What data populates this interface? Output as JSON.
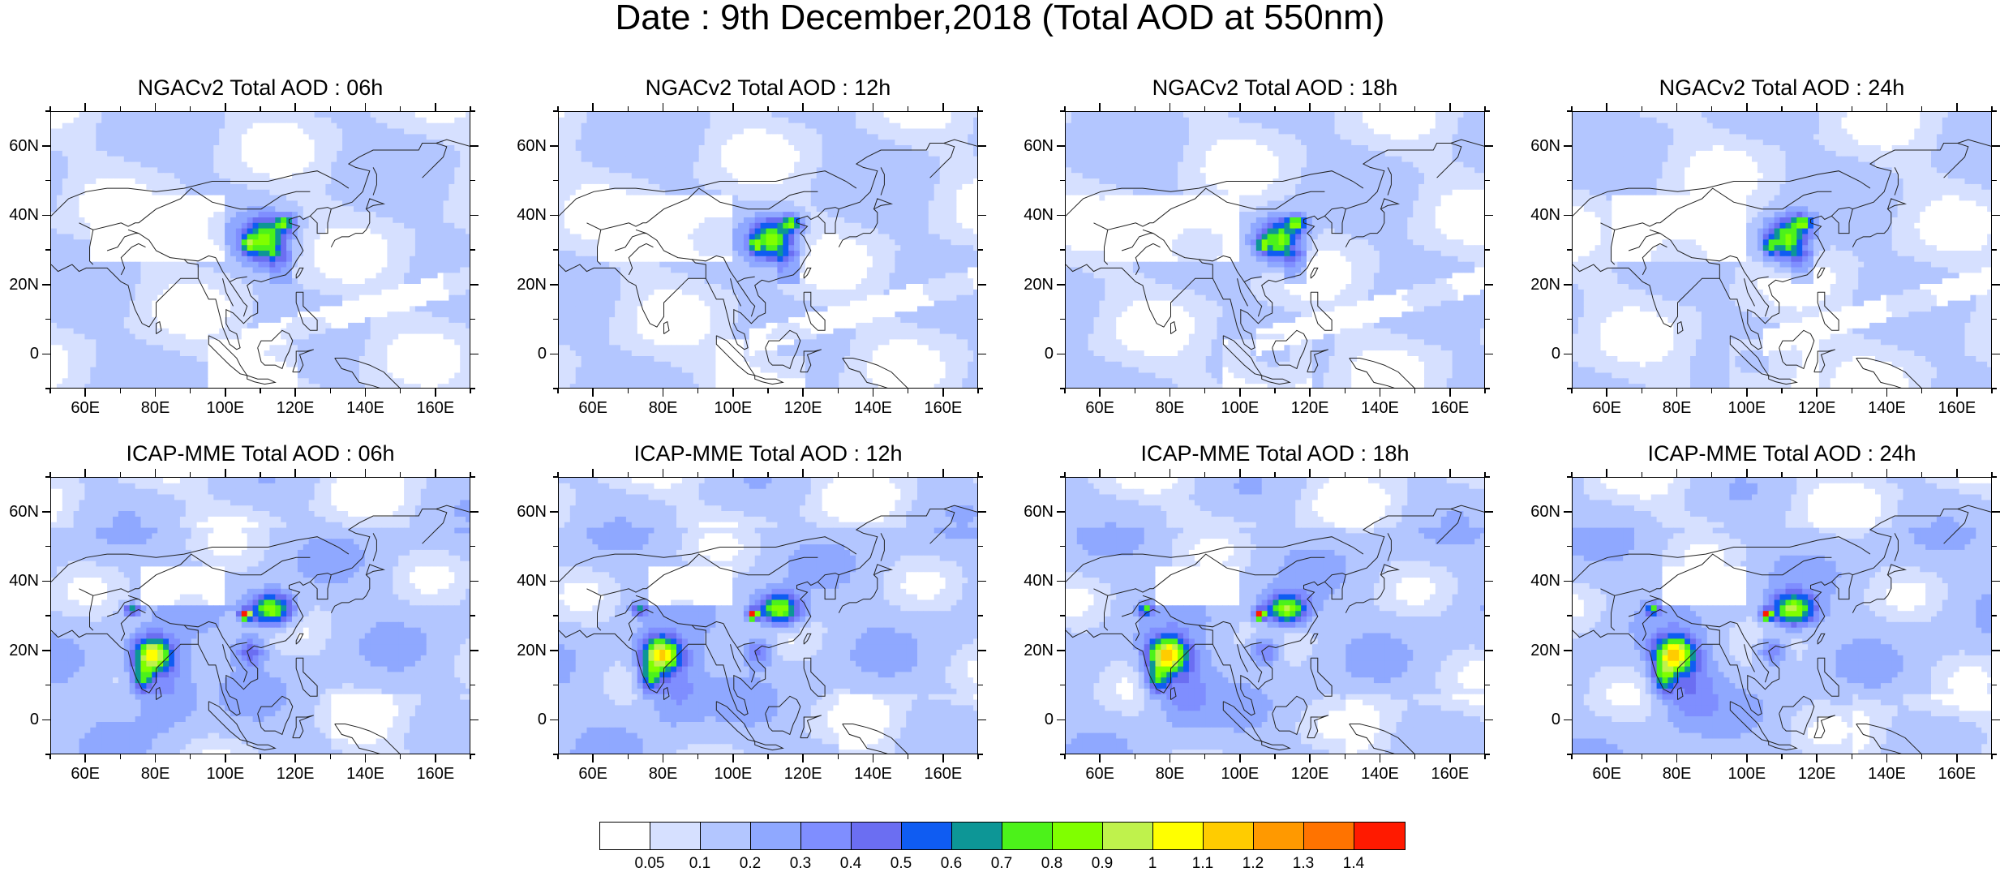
{
  "title": "Date : 9th December,2018 (Total AOD at 550nm)",
  "panels": [
    {
      "title": "NGACv2 Total AOD : 06h",
      "model": "ngac"
    },
    {
      "title": "NGACv2 Total AOD : 12h",
      "model": "ngac"
    },
    {
      "title": "NGACv2 Total AOD : 18h",
      "model": "ngac"
    },
    {
      "title": "NGACv2 Total AOD : 24h",
      "model": "ngac"
    },
    {
      "title": "ICAP-MME Total AOD : 06h",
      "model": "icap"
    },
    {
      "title": "ICAP-MME Total AOD : 12h",
      "model": "icap"
    },
    {
      "title": "ICAP-MME Total AOD : 18h",
      "model": "icap"
    },
    {
      "title": "ICAP-MME Total AOD : 24h",
      "model": "icap"
    }
  ],
  "axes": {
    "x_labels": [
      "60E",
      "80E",
      "100E",
      "120E",
      "140E",
      "160E"
    ],
    "y_labels": [
      "60N",
      "40N",
      "20N",
      "0"
    ]
  },
  "colorbar": {
    "labels": [
      "0.05",
      "0.1",
      "0.2",
      "0.3",
      "0.4",
      "0.5",
      "0.6",
      "0.7",
      "0.8",
      "0.9",
      "1",
      "1.1",
      "1.2",
      "1.3",
      "1.4"
    ],
    "colors": [
      "#ffffff",
      "#d6e0ff",
      "#b3c6ff",
      "#8fa8ff",
      "#7f8eff",
      "#6b6ef2",
      "#0f5cf2",
      "#0d9696",
      "#4cf21a",
      "#80ff00",
      "#bff24c",
      "#ffff00",
      "#ffcc00",
      "#ff9900",
      "#ff7300",
      "#ff1a00"
    ]
  }
}
